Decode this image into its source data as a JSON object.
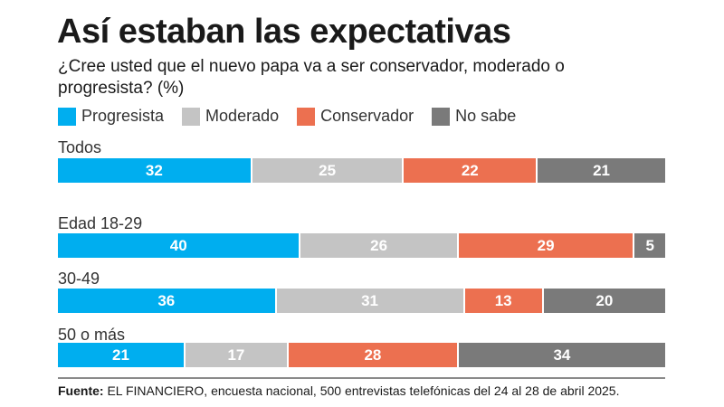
{
  "chart_data": {
    "type": "bar",
    "orientation": "horizontal-stacked",
    "title": "Así estaban las expectativas",
    "subtitle": "¿Cree usted que el nuevo papa va a ser conservador, moderado o progresista? (%)",
    "legend": [
      "Progresista",
      "Moderado",
      "Conservador",
      "No sabe"
    ],
    "legend_placement": "top-left",
    "colors": {
      "Progresista": "#00aeef",
      "Moderado": "#c4c4c4",
      "Conservador": "#ec7050",
      "No sabe": "#7a7a7a"
    },
    "categories": [
      "Todos",
      "Edad 18-29",
      "30-49",
      "50 o más"
    ],
    "series": [
      {
        "name": "Progresista",
        "values": [
          32,
          40,
          36,
          21
        ]
      },
      {
        "name": "Moderado",
        "values": [
          25,
          26,
          31,
          17
        ]
      },
      {
        "name": "Conservador",
        "values": [
          22,
          29,
          13,
          28
        ]
      },
      {
        "name": "No sabe",
        "values": [
          21,
          5,
          20,
          34
        ]
      }
    ],
    "xlim": [
      0,
      100
    ],
    "grid": false
  },
  "source": {
    "label": "Fuente:",
    "text": " EL FINANCIERO, encuesta nacional, 500 entrevistas telefónicas del 24 al 28 de abril 2025."
  }
}
